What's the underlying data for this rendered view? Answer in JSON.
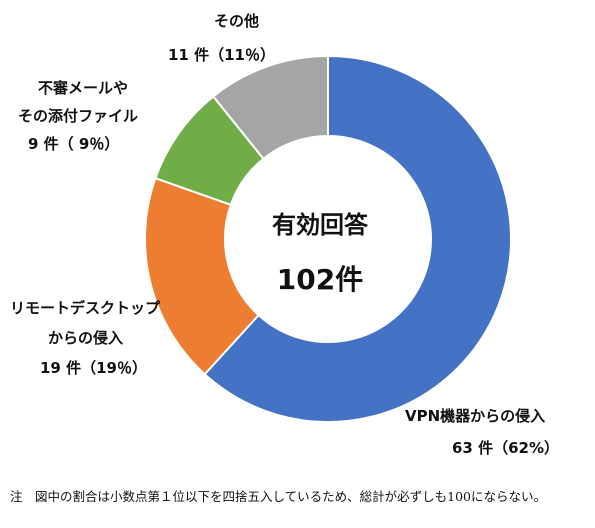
{
  "chart_data": {
    "type": "pie",
    "center_title": "有効回答",
    "center_value": "102件",
    "series": [
      {
        "name": "VPN機器からの侵入",
        "count_label": "63 件（62%）",
        "value": 63,
        "percent": 62,
        "color": "#4472C4"
      },
      {
        "name": "リモートデスクトップからの侵入",
        "count_label": "19 件（19％）",
        "value": 19,
        "percent": 19,
        "color": "#ED7D31"
      },
      {
        "name": "不審メールやその添付ファイル",
        "count_label": "9 件（ 9％）",
        "value": 9,
        "percent": 9,
        "color": "#70AD47"
      },
      {
        "name": "その他",
        "count_label": "11 件（11％）",
        "value": 11,
        "percent": 11,
        "color": "#A5A5A5"
      }
    ],
    "labels": {
      "vpn": {
        "line1": "VPN機器からの侵入",
        "line2": "63 件（62%）"
      },
      "remote": {
        "line1": "リモートデスクトップ",
        "line2": "からの侵入",
        "line3": "19 件（19％）"
      },
      "mail": {
        "line1": "不審メールや",
        "line2": "その添付ファイル",
        "line3": "9 件（ 9％）"
      },
      "other": {
        "line1": "その他",
        "line2": "11 件（11％）"
      }
    }
  },
  "note": {
    "text": "注　図中の割合は小数点第１位以下を四捨五入しているため、総計が必ずしも100にならない。"
  }
}
